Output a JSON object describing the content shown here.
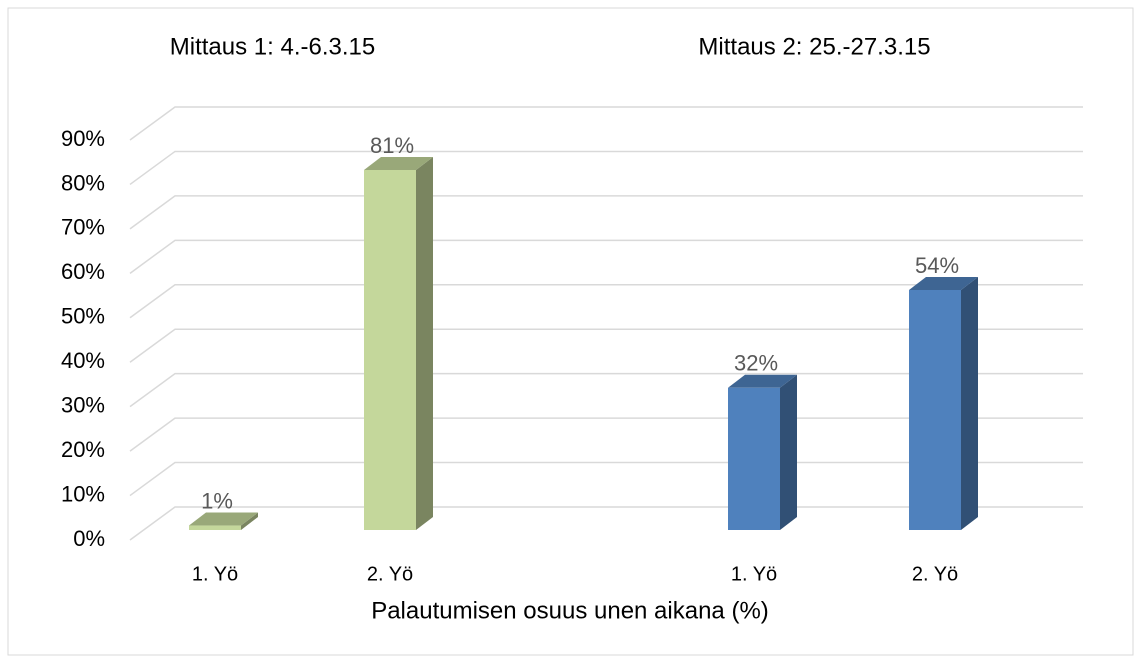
{
  "chart_data": {
    "type": "bar3d",
    "xlabel": "Palautumisen osuus unen aikana (%)",
    "groups": [
      {
        "name": "Mittaus 1: 4.-6.3.15",
        "color": "#c4d79b",
        "categories": [
          "1. Yö",
          "2. Yö"
        ],
        "values": [
          1,
          81
        ],
        "value_labels": [
          "1%",
          "81%"
        ]
      },
      {
        "name": "Mittaus 2: 25.-27.3.15",
        "color": "#4f81bd",
        "categories": [
          "1. Yö",
          "2. Yö"
        ],
        "values": [
          32,
          54
        ],
        "value_labels": [
          "32%",
          "54%"
        ]
      }
    ],
    "ylim": [
      0,
      90
    ],
    "yticks": [
      {
        "value": 0,
        "label": "0%"
      },
      {
        "value": 10,
        "label": "10%"
      },
      {
        "value": 20,
        "label": "20%"
      },
      {
        "value": 30,
        "label": "30%"
      },
      {
        "value": 40,
        "label": "40%"
      },
      {
        "value": 50,
        "label": "50%"
      },
      {
        "value": 60,
        "label": "60%"
      },
      {
        "value": 70,
        "label": "70%"
      },
      {
        "value": 80,
        "label": "80%"
      },
      {
        "value": 90,
        "label": "90%"
      }
    ],
    "grid": true
  }
}
